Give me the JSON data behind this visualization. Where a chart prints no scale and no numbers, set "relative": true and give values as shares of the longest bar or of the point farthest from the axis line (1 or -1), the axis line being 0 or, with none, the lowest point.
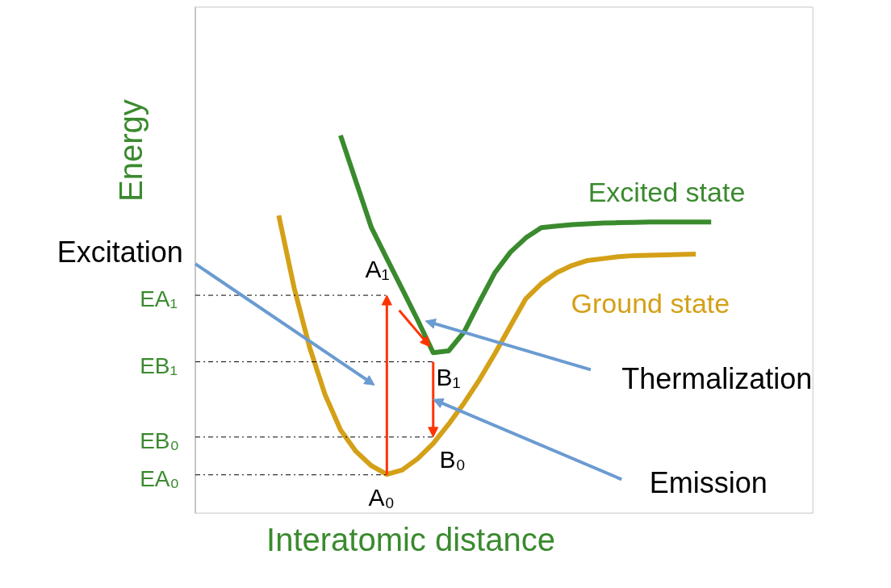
{
  "chart_data": {
    "type": "line",
    "relative": true,
    "xlabel": "Interatomic distance",
    "ylabel": "Energy",
    "tick_labels": false,
    "legend": false,
    "marker": "none",
    "line_style": "solid",
    "categories": [
      null,
      null,
      null,
      null,
      null,
      null,
      null,
      null,
      null,
      null,
      null,
      null,
      null,
      null,
      null,
      null,
      null,
      null,
      null,
      null,
      null,
      null,
      null,
      null,
      null,
      null,
      null,
      null,
      null,
      null,
      null
    ],
    "series": [
      {
        "name": "Excited state",
        "color": "#3a8a2e",
        "values": [
          null,
          null,
          null,
          null,
          null,
          1.0,
          0.878,
          0.756,
          0.674,
          0.593,
          0.511,
          0.425,
          0.43,
          0.48,
          0.56,
          0.637,
          0.691,
          0.729,
          0.756,
          0.76,
          0.764,
          0.766,
          0.768,
          0.769,
          0.77,
          0.771,
          0.771,
          0.771,
          0.771,
          0.771,
          null
        ]
      },
      {
        "name": "Ground state",
        "color": "#d4a017",
        "values": [
          null,
          0.788,
          0.596,
          0.439,
          0.314,
          0.221,
          0.164,
          0.126,
          0.103,
          0.115,
          0.145,
          0.185,
          0.236,
          0.292,
          0.354,
          0.423,
          0.496,
          0.568,
          0.608,
          0.637,
          0.656,
          0.669,
          0.674,
          0.679,
          0.682,
          0.683,
          0.684,
          0.685,
          0.686,
          null,
          null
        ]
      }
    ],
    "ref_lines": [
      {
        "axis": "y",
        "value": 0.577,
        "label": "EA₁",
        "color": "#000000",
        "line_style": "dashdot"
      },
      {
        "axis": "y",
        "value": 0.401,
        "label": "EB₁",
        "color": "#000000",
        "line_style": "dashdot"
      },
      {
        "axis": "y",
        "value": 0.202,
        "label": "EB₀",
        "color": "#000000",
        "line_style": "dashdot"
      },
      {
        "axis": "y",
        "value": 0.102,
        "label": "EA₀",
        "color": "#000000",
        "line_style": "dashdot"
      }
    ],
    "annotations": [
      "A₁",
      "B₁",
      "B₀",
      "A₀",
      "Excitation",
      "Thermalization",
      "Emission"
    ]
  }
}
